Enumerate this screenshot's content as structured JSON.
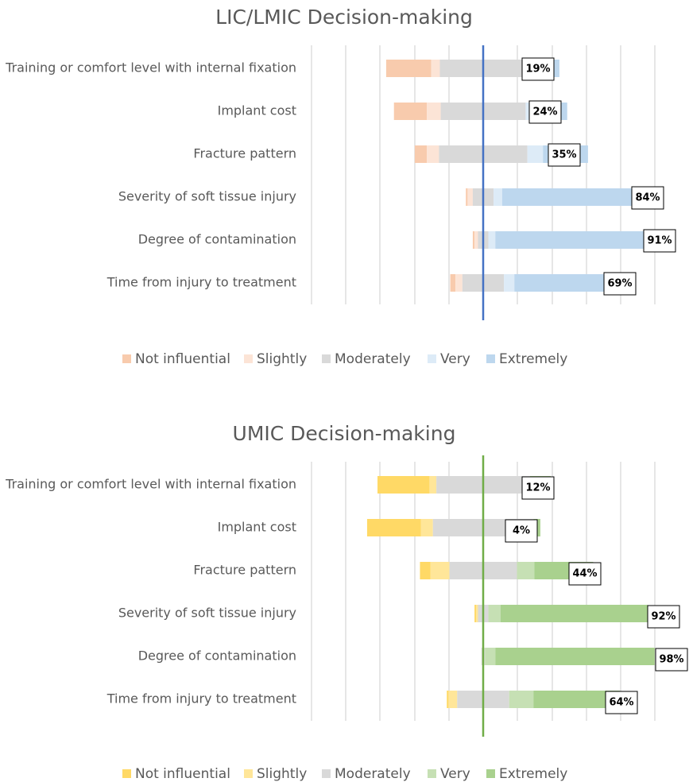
{
  "chart_data": [
    {
      "type": "bar",
      "subtype": "diverging-stacked-bar",
      "title": "LIC/LMIC Decision-making",
      "categories": [
        "Training or comfort level with internal fixation",
        "Implant cost",
        "Fracture pattern",
        "Severity of soft tissue injury",
        "Degree of contamination",
        "Time from injury to treatment"
      ],
      "series": [
        {
          "name": "Not influential",
          "color": "#F8CBAD",
          "values": [
            26,
            19,
            7,
            1,
            1,
            3
          ]
        },
        {
          "name": "Slightly",
          "color": "#FCE4D6",
          "values": [
            5,
            8,
            7,
            3,
            2,
            4
          ]
        },
        {
          "name": "Moderately",
          "color": "#D9D9D9",
          "values": [
            50,
            49,
            51,
            12,
            6,
            24
          ]
        },
        {
          "name": "Very",
          "color": "#DDEBF7",
          "values": [
            11,
            5,
            9,
            5,
            4,
            6
          ]
        },
        {
          "name": "Extremely",
          "color": "#BDD7EE",
          "values": [
            8,
            19,
            26,
            79,
            87,
            63
          ]
        }
      ],
      "percent_labels": [
        "19%",
        "24%",
        "35%",
        "84%",
        "91%",
        "69%"
      ],
      "center_line_color": "#4472C4",
      "grid": true,
      "legend_position": "bottom"
    },
    {
      "type": "bar",
      "subtype": "diverging-stacked-bar",
      "title": "UMIC Decision-making",
      "categories": [
        "Training or comfort level with internal fixation",
        "Implant cost",
        "Fracture pattern",
        "Severity of soft tissue injury",
        "Degree of contamination",
        "Time from injury to treatment"
      ],
      "series": [
        {
          "name": "Not influential",
          "color": "#FFD966",
          "values": [
            30,
            31,
            6,
            1,
            0,
            1
          ]
        },
        {
          "name": "Slightly",
          "color": "#FFE699",
          "values": [
            4,
            7,
            11,
            1,
            0,
            5
          ]
        },
        {
          "name": "Moderately",
          "color": "#D9D9D9",
          "values": [
            54,
            58,
            39,
            6,
            2,
            30
          ]
        },
        {
          "name": "Very",
          "color": "#C6E0B4",
          "values": [
            0,
            0,
            10,
            7,
            6,
            14
          ]
        },
        {
          "name": "Extremely",
          "color": "#A9D18E",
          "values": [
            12,
            4,
            34,
            85,
            92,
            50
          ]
        }
      ],
      "percent_labels": [
        "12%",
        "4%",
        "44%",
        "92%",
        "98%",
        "64%"
      ],
      "center_line_color": "#70AD47",
      "grid": true,
      "legend_position": "bottom"
    }
  ]
}
